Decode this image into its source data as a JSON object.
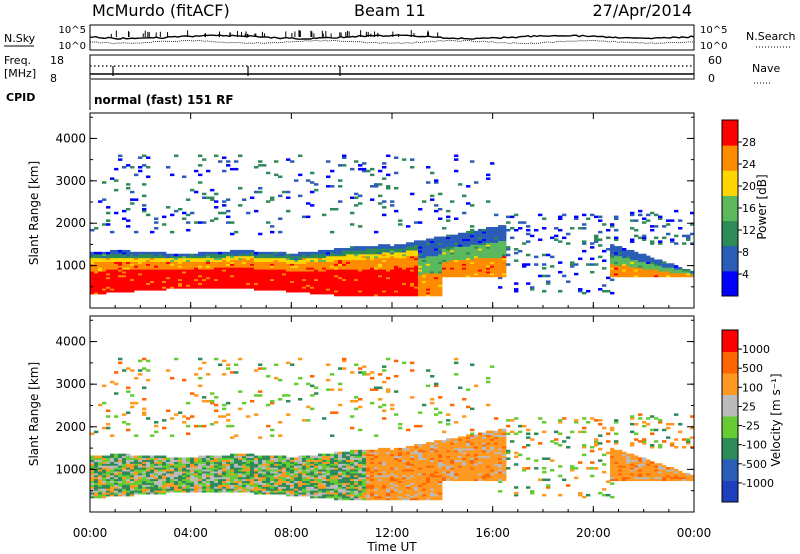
{
  "header": {
    "station": "McMurdo (fitACF)",
    "beam": "Beam 11",
    "date": "27/Apr/2014"
  },
  "chart_data": [
    {
      "type": "line",
      "name": "noise-panel",
      "left_label": "N.Sky",
      "right_label": "N.Search",
      "left_ticks": [
        "10^5",
        "10^0"
      ],
      "right_ticks": [
        "10^5",
        "10^0"
      ]
    },
    {
      "type": "line",
      "name": "frequency-panel",
      "left_label_1": "Freq.",
      "left_label_2": "[MHz]",
      "right_label": "Nave",
      "left_ticks": [
        "18",
        "8"
      ],
      "right_ticks": [
        "60",
        "0"
      ]
    },
    {
      "type": "table",
      "name": "cpid-panel",
      "label": "CPID",
      "value": "normal (fast) 151 RF"
    },
    {
      "type": "heatmap",
      "name": "power-panel",
      "ylabel": "Slant Range [km]",
      "yticks": [
        "4000",
        "3000",
        "2000",
        "1000"
      ],
      "colorbar_label": "Power [dB]",
      "colorbar_ticks": [
        "28",
        "24",
        "20",
        "16",
        "12",
        "8",
        "4"
      ],
      "colors": [
        "#0000ff",
        "#2a5db8",
        "#2e8b57",
        "#5cb85c",
        "#ffd700",
        "#ff8c00",
        "#ff0000"
      ]
    },
    {
      "type": "heatmap",
      "name": "velocity-panel",
      "ylabel": "Slant Range [km]",
      "yticks": [
        "4000",
        "3000",
        "2000",
        "1000"
      ],
      "colorbar_label": "Velocity [m s⁻¹]",
      "colorbar_ticks": [
        "1000",
        "500",
        "100",
        "25",
        "-25",
        "-100",
        "-500",
        "-1000"
      ],
      "colors": [
        "#1f3fbf",
        "#2a5db8",
        "#2e8b57",
        "#66cc33",
        "#bbbbbb",
        "#ff9922",
        "#ff6600",
        "#ff0000"
      ]
    }
  ],
  "xaxis": {
    "label": "Time UT",
    "ticks": [
      "00:00",
      "04:00",
      "08:00",
      "12:00",
      "16:00",
      "20:00",
      "00:00"
    ]
  }
}
